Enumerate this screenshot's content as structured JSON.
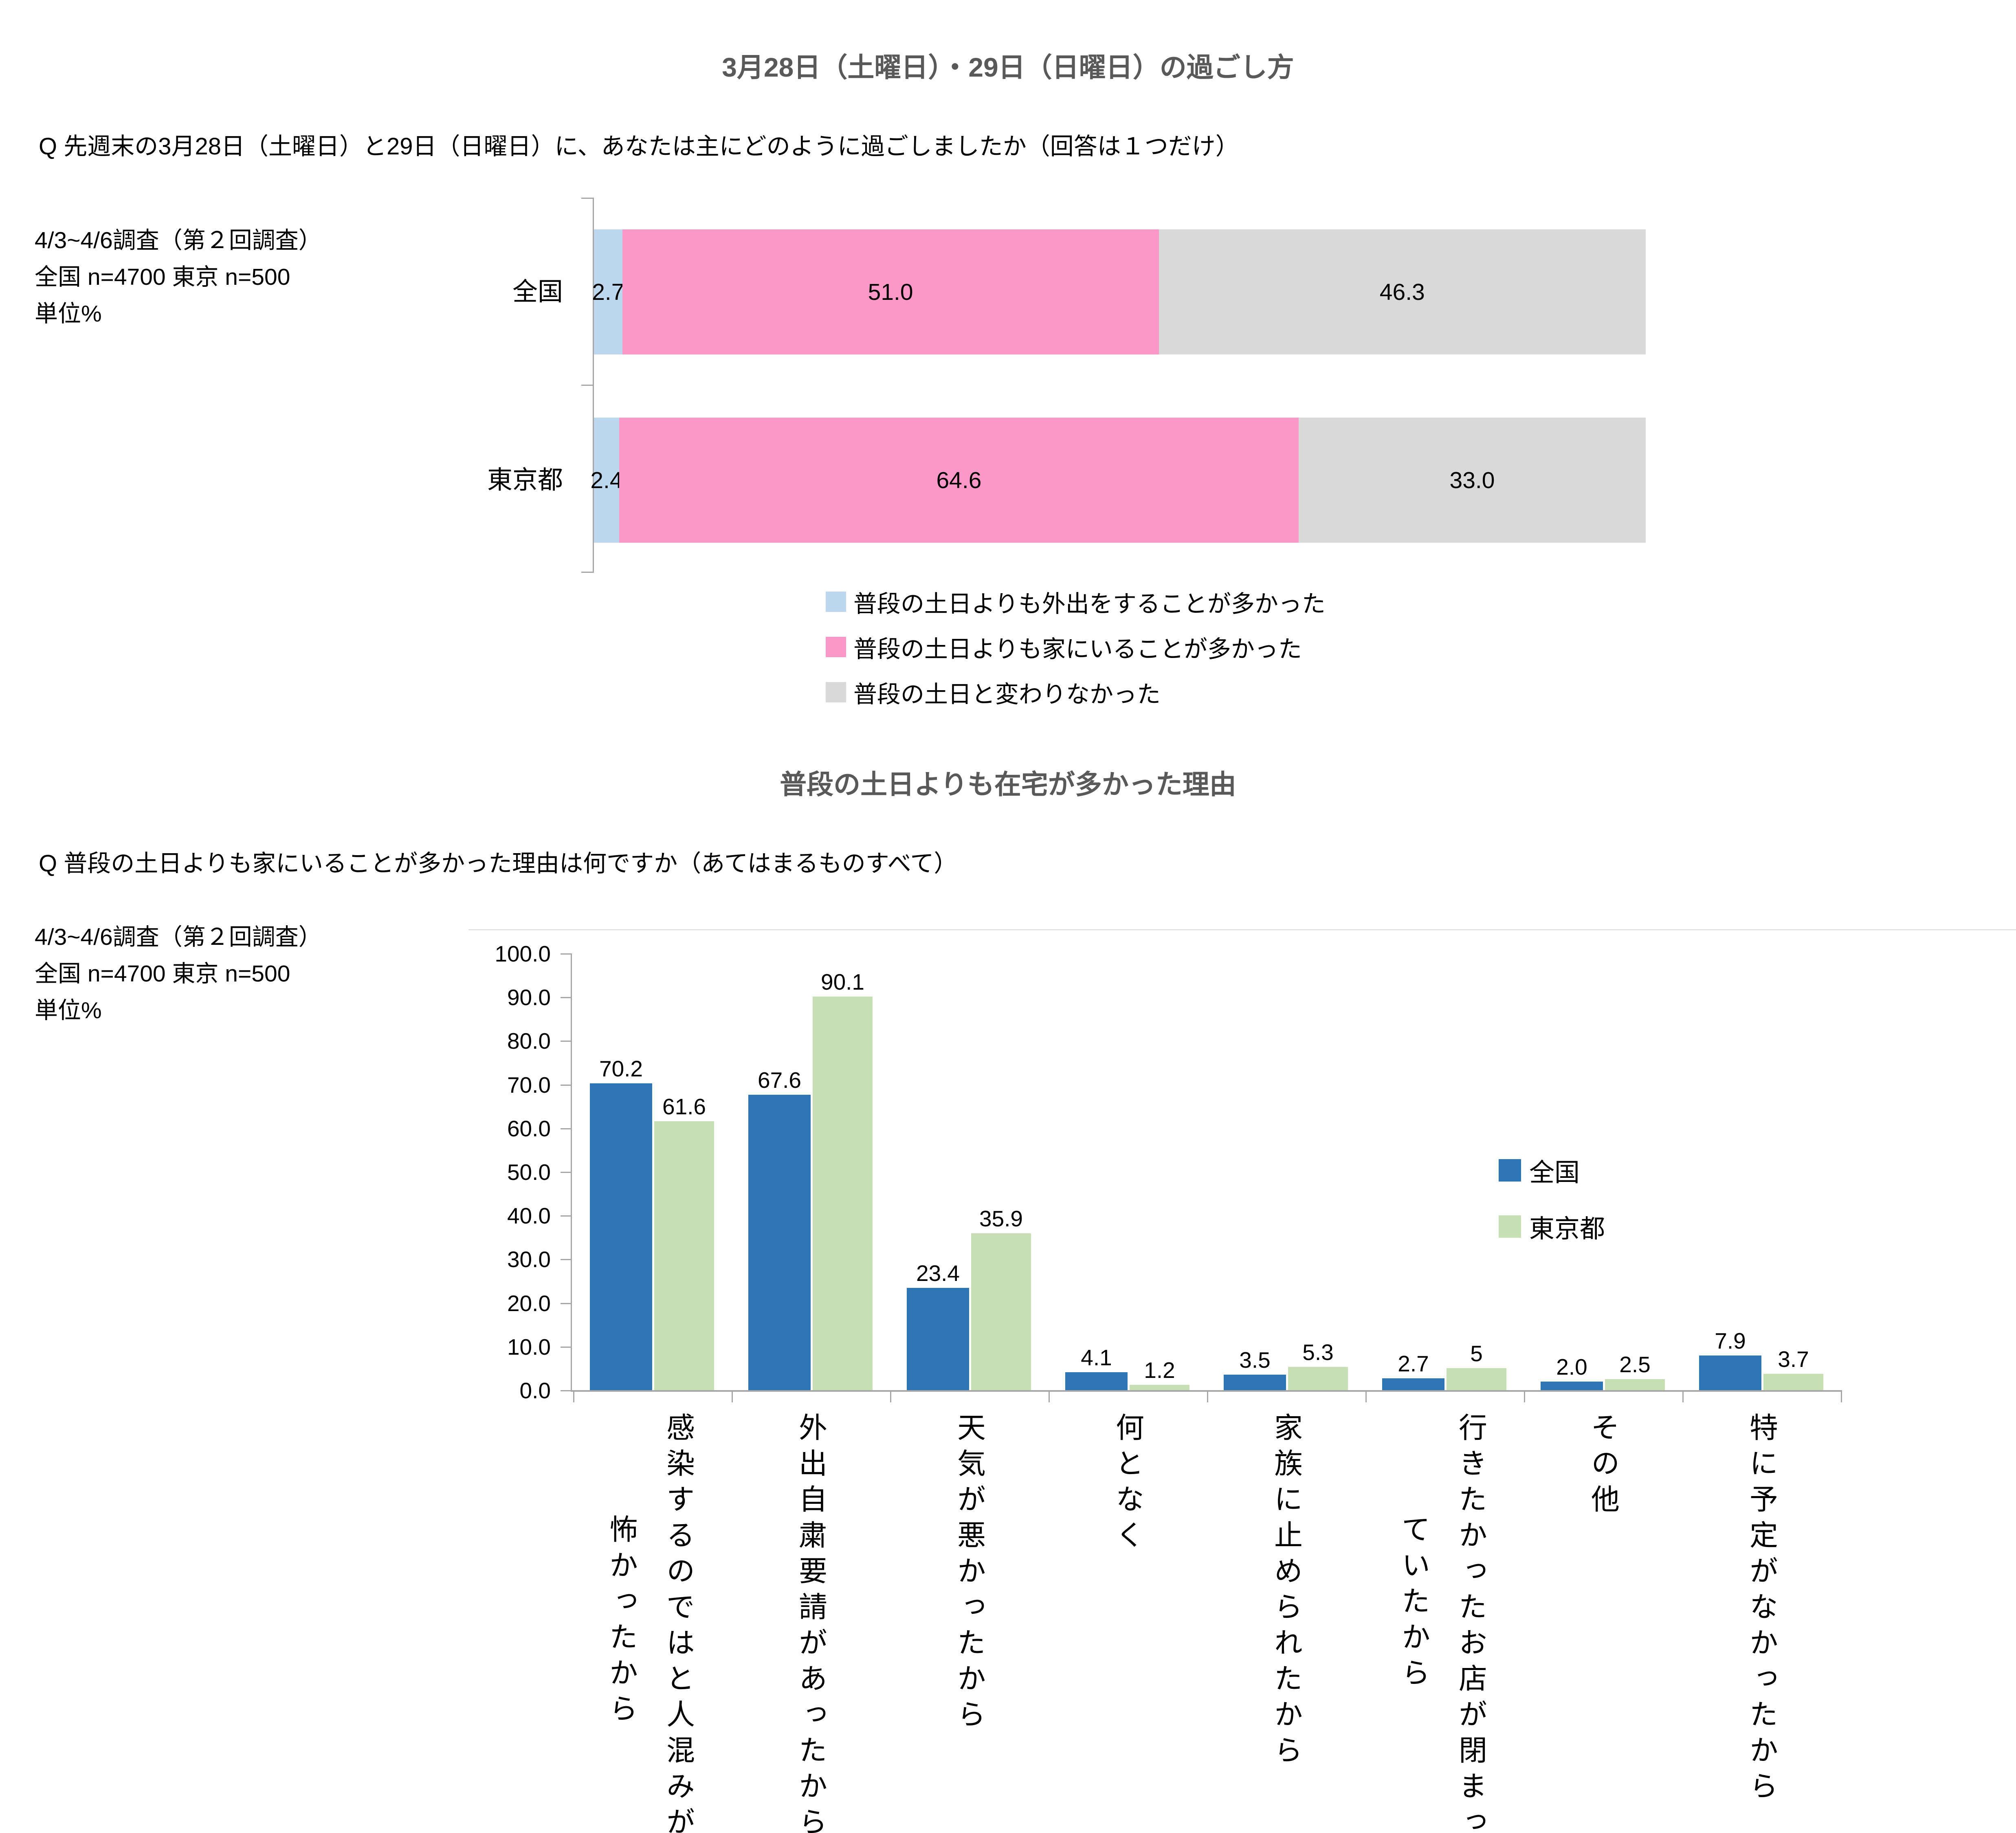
{
  "section1": {
    "title": "3月28日（土曜日）・29日（日曜日）の過ごし方",
    "question": "Q 先週末の3月28日（土曜日）と29日（日曜日）に、あなたは主にどのように過ごしましたか（回答は１つだけ）",
    "note_lines": [
      "4/3~4/6調査（第２回調査）",
      "全国  n=4700  東京  n=500",
      "単位%"
    ]
  },
  "section2": {
    "title": "普段の土日よりも在宅が多かった理由",
    "question": "Q 普段の土日よりも家にいることが多かった理由は何ですか（あてはまるものすべて）",
    "note_lines": [
      "4/3~4/6調査（第２回調査）",
      "全国  n=4700  東京  n=500",
      "単位%"
    ]
  },
  "chart_data": [
    {
      "type": "bar",
      "subtype": "stacked-horizontal",
      "title": "3月28日（土曜日）・29日（日曜日）の過ごし方",
      "categories": [
        "全国",
        "東京都"
      ],
      "series": [
        {
          "name": "普段の土日よりも外出をすることが多かった",
          "color": "#BDD7EE",
          "values": [
            2.7,
            2.4
          ]
        },
        {
          "name": "普段の土日よりも家にいることが多かった",
          "color": "#FB98C7",
          "values": [
            51.0,
            64.6
          ]
        },
        {
          "name": "普段の土日と変わりなかった",
          "color": "#D9D9D9",
          "values": [
            46.3,
            33.0
          ]
        }
      ],
      "value_labels": [
        [
          "2.7",
          "51.0",
          "46.3"
        ],
        [
          "2.4",
          "64.6",
          "33.0"
        ]
      ],
      "xlim": [
        0,
        100
      ],
      "grid": false,
      "legend_position": "bottom",
      "unit": "%"
    },
    {
      "type": "bar",
      "subtype": "grouped-vertical",
      "title": "普段の土日よりも在宅が多かった理由",
      "categories": [
        "感染するのではと人混みが怖かったから",
        "外出自粛要請があったから",
        "天気が悪かったから",
        "何となく",
        "家族に止められたから",
        "行きたかったお店が閉まっていたから",
        "その他",
        "特に予定がなかったから"
      ],
      "category_lines": [
        [
          "感染するのではと人混みが",
          "怖かったから"
        ],
        [
          "外出自粛要請があったから"
        ],
        [
          "天気が悪かったから"
        ],
        [
          "何となく"
        ],
        [
          "家族に止められたから"
        ],
        [
          "行きたかったお店が閉まっ",
          "ていたから"
        ],
        [
          "その他"
        ],
        [
          "特に予定がなかったから"
        ]
      ],
      "series": [
        {
          "name": "全国",
          "color": "#2E75B6",
          "values": [
            70.2,
            67.6,
            23.4,
            4.1,
            3.5,
            2.7,
            2.0,
            7.9
          ],
          "value_labels": [
            "70.2",
            "67.6",
            "23.4",
            "4.1",
            "3.5",
            "2.7",
            "2.0",
            "7.9"
          ]
        },
        {
          "name": "東京都",
          "color": "#C6E0B4",
          "values": [
            61.6,
            90.1,
            35.9,
            1.2,
            5.3,
            5.0,
            2.5,
            3.7
          ],
          "value_labels": [
            "61.6",
            "90.1",
            "35.9",
            "1.2",
            "5.3",
            "5",
            "2.5",
            "3.7"
          ]
        }
      ],
      "y_ticks": [
        "0.0",
        "10.0",
        "20.0",
        "30.0",
        "40.0",
        "50.0",
        "60.0",
        "70.0",
        "80.0",
        "90.0",
        "100.0"
      ],
      "ylim": [
        0,
        100
      ],
      "grid": false,
      "legend_position": "right",
      "unit": "%"
    }
  ]
}
